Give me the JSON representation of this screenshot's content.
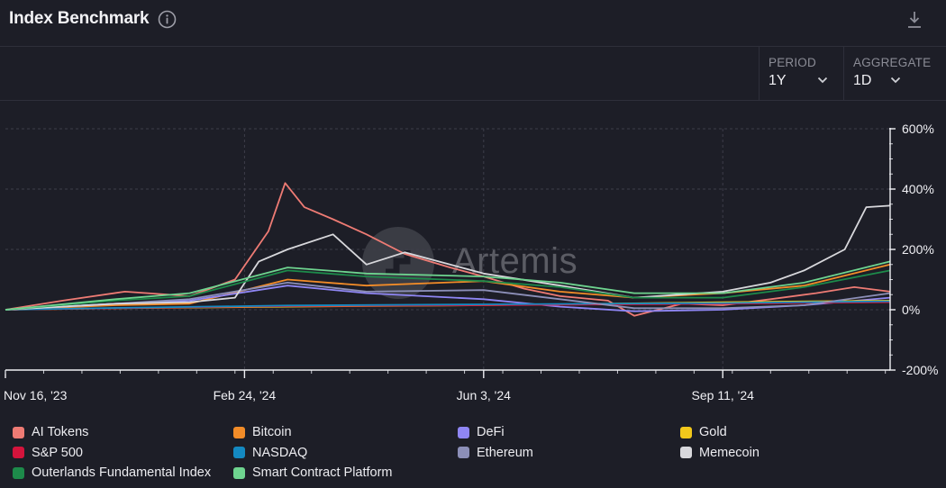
{
  "header": {
    "title": "Index Benchmark"
  },
  "controls": {
    "period": {
      "label": "PERIOD",
      "value": "1Y"
    },
    "aggregate": {
      "label": "AGGREGATE",
      "value": "1D"
    }
  },
  "watermark": {
    "text": "Artemis"
  },
  "chart_data": {
    "type": "line",
    "title": "Index Benchmark",
    "x_ticks": [
      "Nov 16, '23",
      "Feb 24, '24",
      "Jun 3, '24",
      "Sep 11, '24"
    ],
    "y_ticks": [
      "600%",
      "400%",
      "200%",
      "0%",
      "-200%"
    ],
    "x_range": [
      "2023-11-16",
      "2024-11-20"
    ],
    "ylim": [
      -200,
      600
    ],
    "y_unit": "%",
    "grid": true,
    "legend_position": "bottom",
    "series": [
      {
        "name": "AI Tokens",
        "color": "#ee7b74",
        "x": [
          "2023-11-16",
          "2023-12-10",
          "2024-01-05",
          "2024-02-01",
          "2024-02-20",
          "2024-03-05",
          "2024-03-12",
          "2024-03-20",
          "2024-04-01",
          "2024-04-15",
          "2024-05-01",
          "2024-05-20",
          "2024-06-03",
          "2024-06-20",
          "2024-07-05",
          "2024-07-25",
          "2024-08-05",
          "2024-08-25",
          "2024-09-11",
          "2024-10-01",
          "2024-10-20",
          "2024-11-05",
          "2024-11-20"
        ],
        "values": [
          0,
          30,
          60,
          45,
          100,
          260,
          420,
          340,
          300,
          250,
          185,
          140,
          110,
          70,
          45,
          30,
          -20,
          20,
          15,
          35,
          55,
          75,
          60
        ]
      },
      {
        "name": "Bitcoin",
        "color": "#f28c28",
        "x": [
          "2023-11-16",
          "2024-01-01",
          "2024-02-01",
          "2024-03-13",
          "2024-04-15",
          "2024-06-03",
          "2024-07-05",
          "2024-08-05",
          "2024-09-11",
          "2024-10-15",
          "2024-11-20"
        ],
        "values": [
          0,
          15,
          20,
          100,
          80,
          95,
          60,
          40,
          55,
          80,
          150
        ]
      },
      {
        "name": "DeFi",
        "color": "#8f86f4",
        "x": [
          "2023-11-16",
          "2024-01-01",
          "2024-02-01",
          "2024-03-13",
          "2024-04-15",
          "2024-06-03",
          "2024-07-05",
          "2024-08-05",
          "2024-09-11",
          "2024-10-15",
          "2024-11-20"
        ],
        "values": [
          0,
          20,
          30,
          80,
          55,
          35,
          10,
          -5,
          0,
          15,
          40
        ]
      },
      {
        "name": "Gold",
        "color": "#f2c81b",
        "x": [
          "2023-11-16",
          "2024-01-01",
          "2024-03-13",
          "2024-06-03",
          "2024-09-11",
          "2024-11-20"
        ],
        "values": [
          0,
          5,
          10,
          15,
          25,
          30
        ]
      },
      {
        "name": "S&P 500",
        "color": "#d4143c",
        "x": [
          "2023-11-16",
          "2024-01-01",
          "2024-03-13",
          "2024-06-03",
          "2024-09-11",
          "2024-11-20"
        ],
        "values": [
          0,
          5,
          12,
          15,
          20,
          25
        ]
      },
      {
        "name": "NASDAQ",
        "color": "#1489c1",
        "x": [
          "2023-11-16",
          "2024-01-01",
          "2024-03-13",
          "2024-06-03",
          "2024-09-11",
          "2024-11-20"
        ],
        "values": [
          0,
          6,
          14,
          18,
          22,
          28
        ]
      },
      {
        "name": "Ethereum",
        "color": "#8c8fb8",
        "x": [
          "2023-11-16",
          "2024-01-01",
          "2024-02-01",
          "2024-03-13",
          "2024-04-15",
          "2024-06-03",
          "2024-07-05",
          "2024-08-05",
          "2024-09-11",
          "2024-10-15",
          "2024-11-20"
        ],
        "values": [
          0,
          20,
          35,
          90,
          60,
          65,
          35,
          5,
          5,
          15,
          55
        ]
      },
      {
        "name": "Memecoin",
        "color": "#d8d8dc",
        "x": [
          "2023-11-16",
          "2024-01-01",
          "2024-02-01",
          "2024-02-20",
          "2024-03-01",
          "2024-03-13",
          "2024-04-01",
          "2024-04-15",
          "2024-05-01",
          "2024-06-03",
          "2024-07-05",
          "2024-08-05",
          "2024-09-11",
          "2024-10-01",
          "2024-10-15",
          "2024-11-01",
          "2024-11-10",
          "2024-11-20"
        ],
        "values": [
          0,
          20,
          25,
          40,
          160,
          200,
          250,
          150,
          190,
          120,
          80,
          40,
          60,
          90,
          130,
          200,
          340,
          345
        ]
      },
      {
        "name": "Outerlands Fundamental Index",
        "color": "#1d8a4a",
        "x": [
          "2023-11-16",
          "2024-01-01",
          "2024-02-01",
          "2024-03-13",
          "2024-04-15",
          "2024-06-03",
          "2024-07-05",
          "2024-08-05",
          "2024-09-11",
          "2024-10-15",
          "2024-11-20"
        ],
        "values": [
          0,
          30,
          45,
          130,
          110,
          95,
          75,
          40,
          40,
          75,
          130
        ]
      },
      {
        "name": "Smart Contract Platform",
        "color": "#6ed48f",
        "x": [
          "2023-11-16",
          "2024-01-01",
          "2024-02-01",
          "2024-03-13",
          "2024-04-15",
          "2024-06-03",
          "2024-07-05",
          "2024-08-05",
          "2024-09-11",
          "2024-10-15",
          "2024-11-20"
        ],
        "values": [
          0,
          35,
          55,
          140,
          120,
          110,
          90,
          55,
          55,
          90,
          160
        ]
      }
    ]
  }
}
